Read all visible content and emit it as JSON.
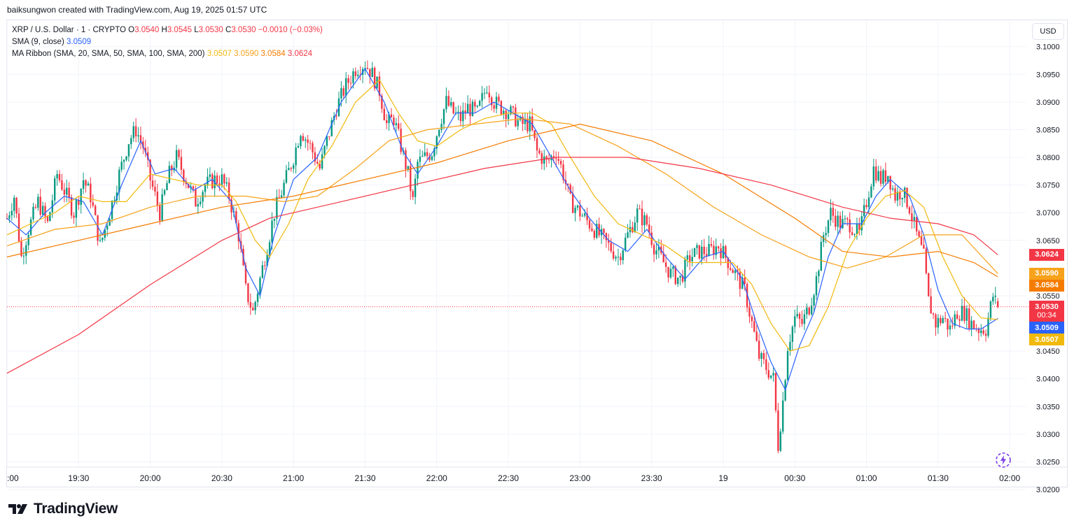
{
  "header": {
    "text": "baiksungwon created with TradingView.com, Aug 19, 2025 01:57 UTC"
  },
  "legend": {
    "symbol": "XRP / U.S. Dollar · 1 · CRYPTO",
    "o_label": "O",
    "o_value": "3.0540",
    "h_label": "H",
    "h_value": "3.0545",
    "l_label": "L",
    "l_value": "3.0530",
    "c_label": "C",
    "c_value": "3.0530",
    "change": "−0.0010 (−0.03%)",
    "sma_label": "SMA (9, close)",
    "sma_value": "3.0509",
    "ribbon_label": "MA Ribbon (SMA, 20, SMA, 50, SMA, 100, SMA, 200)",
    "ribbon_values": [
      "3.0507",
      "3.0590",
      "3.0584",
      "3.0624"
    ]
  },
  "currency_button": "USD",
  "price_tags": [
    {
      "name": "ma200-price-tag",
      "value": "3.0624",
      "color": "#f23645"
    },
    {
      "name": "ma50-price-tag",
      "value": "3.0590",
      "color": "#f7a21b"
    },
    {
      "name": "ma100-price-tag",
      "value": "3.0584",
      "color": "#f57c00"
    },
    {
      "name": "last-price-tag",
      "value": "3.0530",
      "sub": "00:34",
      "color": "#f23645"
    },
    {
      "name": "sma9-price-tag",
      "value": "3.0509",
      "color": "#2962ff"
    },
    {
      "name": "ma20-price-tag",
      "value": "3.0507",
      "color": "#f0b90b"
    }
  ],
  "branding": {
    "logo_text": "TradingView"
  },
  "chart_data": {
    "type": "candlestick",
    "symbol": "XRPUSD",
    "interval": "1",
    "ylim": [
      3.0195,
      3.1035
    ],
    "y_ticks": [
      "3.1000",
      "3.0950",
      "3.0900",
      "3.0850",
      "3.0800",
      "3.0750",
      "3.0700",
      "3.0650",
      "3.0550",
      "3.0450",
      "3.0400",
      "3.0350",
      "3.0300",
      "3.0250",
      "3.0200"
    ],
    "x_ticks": [
      {
        "label": ":00",
        "min": 0
      },
      {
        "label": "19:30",
        "min": 30
      },
      {
        "label": "20:00",
        "min": 60
      },
      {
        "label": "20:30",
        "min": 90
      },
      {
        "label": "21:00",
        "min": 120
      },
      {
        "label": "21:30",
        "min": 150
      },
      {
        "label": "22:00",
        "min": 180
      },
      {
        "label": "22:30",
        "min": 210
      },
      {
        "label": "23:00",
        "min": 240
      },
      {
        "label": "23:30",
        "min": 270
      },
      {
        "label": "19",
        "min": 300
      },
      {
        "label": "00:30",
        "min": 330
      },
      {
        "label": "01:00",
        "min": 360
      },
      {
        "label": "01:30",
        "min": 390
      },
      {
        "label": "02:00",
        "min": 420
      }
    ],
    "last_price": 3.053,
    "close_path": [
      [
        0,
        3.069
      ],
      [
        3,
        3.073
      ],
      [
        6,
        3.062
      ],
      [
        9,
        3.067
      ],
      [
        13,
        3.072
      ],
      [
        17,
        3.068
      ],
      [
        21,
        3.077
      ],
      [
        24,
        3.074
      ],
      [
        28,
        3.07
      ],
      [
        32,
        3.076
      ],
      [
        35,
        3.073
      ],
      [
        39,
        3.064
      ],
      [
        43,
        3.07
      ],
      [
        47,
        3.077
      ],
      [
        51,
        3.083
      ],
      [
        54,
        3.085
      ],
      [
        57,
        3.082
      ],
      [
        60,
        3.076
      ],
      [
        64,
        3.07
      ],
      [
        68,
        3.077
      ],
      [
        71,
        3.08
      ],
      [
        75,
        3.076
      ],
      [
        79,
        3.072
      ],
      [
        83,
        3.075
      ],
      [
        87,
        3.076
      ],
      [
        90,
        3.076
      ],
      [
        93,
        3.073
      ],
      [
        97,
        3.066
      ],
      [
        100,
        3.056
      ],
      [
        103,
        3.052
      ],
      [
        106,
        3.058
      ],
      [
        109,
        3.064
      ],
      [
        112,
        3.07
      ],
      [
        116,
        3.075
      ],
      [
        120,
        3.08
      ],
      [
        123,
        3.085
      ],
      [
        127,
        3.082
      ],
      [
        131,
        3.078
      ],
      [
        134,
        3.083
      ],
      [
        138,
        3.089
      ],
      [
        142,
        3.093
      ],
      [
        146,
        3.096
      ],
      [
        150,
        3.097
      ],
      [
        153,
        3.095
      ],
      [
        156,
        3.092
      ],
      [
        159,
        3.086
      ],
      [
        162,
        3.087
      ],
      [
        165,
        3.082
      ],
      [
        168,
        3.077
      ],
      [
        170,
        3.072
      ],
      [
        172,
        3.079
      ],
      [
        175,
        3.08
      ],
      [
        178,
        3.081
      ],
      [
        181,
        3.086
      ],
      [
        184,
        3.09
      ],
      [
        187,
        3.088
      ],
      [
        190,
        3.087
      ],
      [
        193,
        3.089
      ],
      [
        197,
        3.088
      ],
      [
        201,
        3.093
      ],
      [
        204,
        3.09
      ],
      [
        207,
        3.089
      ],
      [
        211,
        3.088
      ],
      [
        215,
        3.086
      ],
      [
        219,
        3.086
      ],
      [
        222,
        3.081
      ],
      [
        226,
        3.079
      ],
      [
        230,
        3.081
      ],
      [
        233,
        3.077
      ],
      [
        236,
        3.072
      ],
      [
        240,
        3.07
      ],
      [
        244,
        3.068
      ],
      [
        248,
        3.066
      ],
      [
        252,
        3.064
      ],
      [
        256,
        3.062
      ],
      [
        260,
        3.066
      ],
      [
        264,
        3.07
      ],
      [
        268,
        3.068
      ],
      [
        271,
        3.064
      ],
      [
        275,
        3.061
      ],
      [
        278,
        3.059
      ],
      [
        282,
        3.058
      ],
      [
        286,
        3.062
      ],
      [
        290,
        3.063
      ],
      [
        294,
        3.063
      ],
      [
        298,
        3.064
      ],
      [
        301,
        3.062
      ],
      [
        305,
        3.059
      ],
      [
        309,
        3.056
      ],
      [
        312,
        3.05
      ],
      [
        315,
        3.044
      ],
      [
        318,
        3.042
      ],
      [
        321,
        3.04
      ],
      [
        323,
        3.028
      ],
      [
        325,
        3.036
      ],
      [
        327,
        3.046
      ],
      [
        330,
        3.051
      ],
      [
        333,
        3.05
      ],
      [
        336,
        3.053
      ],
      [
        339,
        3.058
      ],
      [
        342,
        3.066
      ],
      [
        345,
        3.07
      ],
      [
        349,
        3.068
      ],
      [
        353,
        3.068
      ],
      [
        357,
        3.066
      ],
      [
        360,
        3.072
      ],
      [
        363,
        3.078
      ],
      [
        366,
        3.076
      ],
      [
        369,
        3.077
      ],
      [
        372,
        3.073
      ],
      [
        375,
        3.074
      ],
      [
        378,
        3.071
      ],
      [
        381,
        3.066
      ],
      [
        384,
        3.062
      ],
      [
        386,
        3.054
      ],
      [
        389,
        3.05
      ],
      [
        392,
        3.051
      ],
      [
        395,
        3.049
      ],
      [
        398,
        3.052
      ],
      [
        401,
        3.052
      ],
      [
        404,
        3.05
      ],
      [
        407,
        3.049
      ],
      [
        410,
        3.049
      ],
      [
        413,
        3.055
      ],
      [
        415,
        3.053
      ]
    ],
    "series": [
      {
        "name": "SMA 9",
        "color": "#2962ff",
        "value": 3.0509,
        "points": [
          [
            0,
            3.069
          ],
          [
            8,
            3.066
          ],
          [
            16,
            3.07
          ],
          [
            24,
            3.073
          ],
          [
            32,
            3.072
          ],
          [
            40,
            3.066
          ],
          [
            48,
            3.075
          ],
          [
            56,
            3.083
          ],
          [
            62,
            3.077
          ],
          [
            70,
            3.078
          ],
          [
            78,
            3.074
          ],
          [
            86,
            3.076
          ],
          [
            94,
            3.072
          ],
          [
            100,
            3.06
          ],
          [
            106,
            3.055
          ],
          [
            112,
            3.066
          ],
          [
            120,
            3.076
          ],
          [
            130,
            3.08
          ],
          [
            140,
            3.09
          ],
          [
            150,
            3.096
          ],
          [
            158,
            3.09
          ],
          [
            166,
            3.081
          ],
          [
            172,
            3.077
          ],
          [
            180,
            3.082
          ],
          [
            188,
            3.088
          ],
          [
            196,
            3.088
          ],
          [
            204,
            3.09
          ],
          [
            212,
            3.088
          ],
          [
            220,
            3.086
          ],
          [
            228,
            3.08
          ],
          [
            236,
            3.074
          ],
          [
            244,
            3.069
          ],
          [
            252,
            3.065
          ],
          [
            260,
            3.063
          ],
          [
            268,
            3.067
          ],
          [
            276,
            3.062
          ],
          [
            284,
            3.058
          ],
          [
            292,
            3.062
          ],
          [
            300,
            3.063
          ],
          [
            308,
            3.058
          ],
          [
            314,
            3.05
          ],
          [
            320,
            3.043
          ],
          [
            326,
            3.038
          ],
          [
            332,
            3.046
          ],
          [
            338,
            3.052
          ],
          [
            344,
            3.062
          ],
          [
            350,
            3.068
          ],
          [
            358,
            3.068
          ],
          [
            364,
            3.073
          ],
          [
            370,
            3.076
          ],
          [
            378,
            3.073
          ],
          [
            384,
            3.066
          ],
          [
            390,
            3.056
          ],
          [
            396,
            3.05
          ],
          [
            402,
            3.049
          ],
          [
            408,
            3.049
          ],
          [
            415,
            3.0509
          ]
        ]
      },
      {
        "name": "SMA 20",
        "color": "#f0b90b",
        "value": 3.0507,
        "points": [
          [
            0,
            3.066
          ],
          [
            10,
            3.068
          ],
          [
            20,
            3.07
          ],
          [
            30,
            3.073
          ],
          [
            40,
            3.072
          ],
          [
            50,
            3.072
          ],
          [
            60,
            3.077
          ],
          [
            70,
            3.076
          ],
          [
            80,
            3.075
          ],
          [
            90,
            3.075
          ],
          [
            96,
            3.072
          ],
          [
            104,
            3.065
          ],
          [
            110,
            3.062
          ],
          [
            118,
            3.068
          ],
          [
            126,
            3.076
          ],
          [
            136,
            3.082
          ],
          [
            146,
            3.09
          ],
          [
            156,
            3.094
          ],
          [
            164,
            3.088
          ],
          [
            172,
            3.083
          ],
          [
            180,
            3.082
          ],
          [
            190,
            3.085
          ],
          [
            200,
            3.087
          ],
          [
            210,
            3.088
          ],
          [
            220,
            3.088
          ],
          [
            228,
            3.086
          ],
          [
            236,
            3.08
          ],
          [
            246,
            3.073
          ],
          [
            256,
            3.068
          ],
          [
            266,
            3.066
          ],
          [
            276,
            3.064
          ],
          [
            286,
            3.061
          ],
          [
            296,
            3.061
          ],
          [
            304,
            3.061
          ],
          [
            312,
            3.057
          ],
          [
            320,
            3.05
          ],
          [
            328,
            3.045
          ],
          [
            336,
            3.046
          ],
          [
            344,
            3.053
          ],
          [
            352,
            3.063
          ],
          [
            360,
            3.069
          ],
          [
            368,
            3.073
          ],
          [
            376,
            3.074
          ],
          [
            384,
            3.071
          ],
          [
            392,
            3.062
          ],
          [
            400,
            3.055
          ],
          [
            408,
            3.051
          ],
          [
            415,
            3.0507
          ]
        ]
      },
      {
        "name": "SMA 50",
        "color": "#f7a21b",
        "value": 3.059,
        "points": [
          [
            0,
            3.064
          ],
          [
            20,
            3.067
          ],
          [
            40,
            3.068
          ],
          [
            60,
            3.071
          ],
          [
            80,
            3.073
          ],
          [
            100,
            3.073
          ],
          [
            116,
            3.072
          ],
          [
            130,
            3.073
          ],
          [
            146,
            3.078
          ],
          [
            160,
            3.083
          ],
          [
            176,
            3.085
          ],
          [
            196,
            3.086
          ],
          [
            216,
            3.087
          ],
          [
            236,
            3.086
          ],
          [
            256,
            3.082
          ],
          [
            276,
            3.077
          ],
          [
            296,
            3.071
          ],
          [
            316,
            3.066
          ],
          [
            336,
            3.062
          ],
          [
            352,
            3.06
          ],
          [
            368,
            3.062
          ],
          [
            384,
            3.066
          ],
          [
            400,
            3.066
          ],
          [
            415,
            3.059
          ]
        ]
      },
      {
        "name": "SMA 100",
        "color": "#f57c00",
        "value": 3.0584,
        "points": [
          [
            0,
            3.062
          ],
          [
            30,
            3.065
          ],
          [
            60,
            3.068
          ],
          [
            90,
            3.071
          ],
          [
            120,
            3.073
          ],
          [
            150,
            3.076
          ],
          [
            180,
            3.079
          ],
          [
            210,
            3.083
          ],
          [
            240,
            3.086
          ],
          [
            270,
            3.083
          ],
          [
            300,
            3.077
          ],
          [
            330,
            3.069
          ],
          [
            350,
            3.063
          ],
          [
            370,
            3.062
          ],
          [
            390,
            3.063
          ],
          [
            405,
            3.061
          ],
          [
            415,
            3.0584
          ]
        ]
      },
      {
        "name": "SMA 200",
        "color": "#f23645",
        "value": 3.0624,
        "points": [
          [
            0,
            3.041
          ],
          [
            30,
            3.048
          ],
          [
            60,
            3.057
          ],
          [
            90,
            3.065
          ],
          [
            110,
            3.069
          ],
          [
            140,
            3.072
          ],
          [
            170,
            3.075
          ],
          [
            200,
            3.078
          ],
          [
            230,
            3.08
          ],
          [
            260,
            3.08
          ],
          [
            290,
            3.078
          ],
          [
            320,
            3.075
          ],
          [
            350,
            3.071
          ],
          [
            370,
            3.069
          ],
          [
            390,
            3.068
          ],
          [
            405,
            3.066
          ],
          [
            415,
            3.0624
          ]
        ]
      }
    ]
  }
}
